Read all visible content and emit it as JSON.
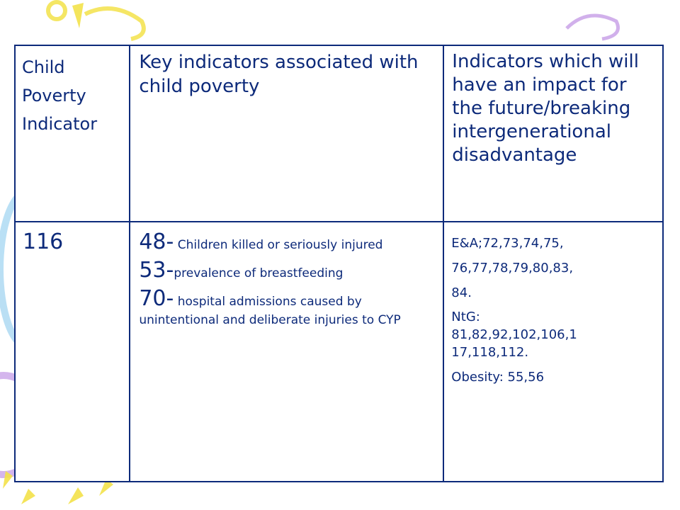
{
  "table": {
    "header": {
      "col1": [
        "Child",
        "Poverty",
        "Indicator"
      ],
      "col2": "Key indicators associated with child poverty",
      "col3": "Indicators which will have an impact for the future/breaking intergenerational disadvantage"
    },
    "row": {
      "col1": "116",
      "key_indicators": [
        {
          "number": "48-",
          "text": " Children killed or seriously injured"
        },
        {
          "number": "53-",
          "text": "prevalence of breastfeeding"
        },
        {
          "number": "70-",
          "text": " hospital admissions caused by unintentional and deliberate injuries to CYP"
        }
      ],
      "future_indicators": {
        "ea_lines": [
          "E&A;72,73,74,75,",
          "76,77,78,79,80,83,",
          "84."
        ],
        "ntg_lines": [
          "NtG:",
          "81,82,92,102,106,1",
          "17,118,112."
        ],
        "obesity": "Obesity: 55,56"
      }
    }
  },
  "colors": {
    "text": "#0d2a7a",
    "border": "#0d2a7a",
    "deco_yellow": "#f3e24a",
    "deco_blue": "#a9d8f2",
    "deco_purple": "#c9a2e8"
  }
}
